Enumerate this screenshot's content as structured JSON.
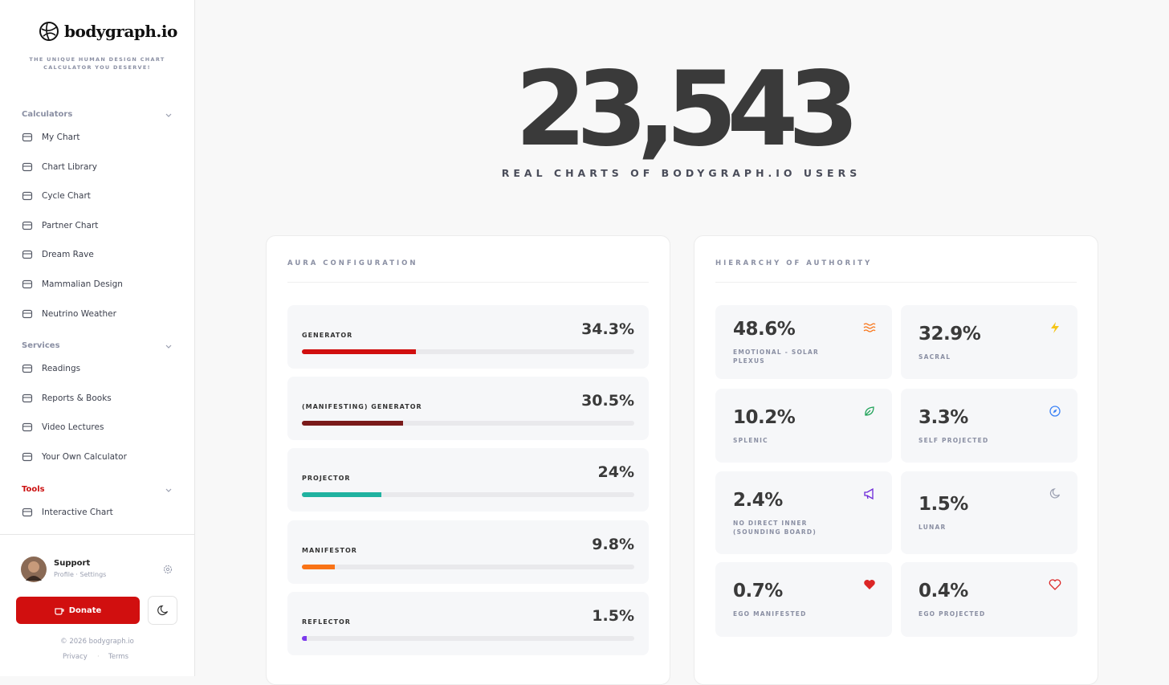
{
  "sidebar": {
    "brand": "bodygraph.io",
    "tagline": "THE UNIQUE HUMAN DESIGN CHART CALCULATOR YOU DESERVE!",
    "sections": [
      {
        "title": "Calculators",
        "items": [
          "My Chart",
          "Chart Library",
          "Cycle Chart",
          "Partner Chart",
          "Dream Rave",
          "Mammalian Design",
          "Neutrino Weather"
        ]
      },
      {
        "title": "Services",
        "items": [
          "Readings",
          "Reports & Books",
          "Video Lectures",
          "Your Own Calculator"
        ]
      },
      {
        "title": "Tools",
        "items": [
          "Interactive Chart"
        ]
      }
    ],
    "user": {
      "name": "Support",
      "links": "Profile · Settings"
    },
    "donate": "Donate",
    "copyright": "© 2026 bodygraph.io",
    "footer_links": [
      "Privacy",
      "Terms"
    ]
  },
  "hero": {
    "count": "23,543",
    "caption": "REAL CHARTS OF BODYGRAPH.IO USERS"
  },
  "aura": {
    "title": "AURA CONFIGURATION",
    "rows": [
      {
        "label": "GENERATOR",
        "value": 34.3,
        "value_label": "34.3%",
        "color": "#d10f0f"
      },
      {
        "label": "(MANIFESTING) GENERATOR",
        "value": 30.5,
        "value_label": "30.5%",
        "color": "#7a1a1a"
      },
      {
        "label": "PROJECTOR",
        "value": 24,
        "value_label": "24%",
        "color": "#20b2a0"
      },
      {
        "label": "MANIFESTOR",
        "value": 9.8,
        "value_label": "9.8%",
        "color": "#f97316"
      },
      {
        "label": "REFLECTOR",
        "value": 1.5,
        "value_label": "1.5%",
        "color": "#7c3aed"
      }
    ]
  },
  "authority": {
    "title": "HIERARCHY OF AUTHORITY",
    "items": [
      {
        "label": "EMOTIONAL - SOLAR PLEXUS",
        "value": "48.6%"
      },
      {
        "label": "SACRAL",
        "value": "32.9%"
      },
      {
        "label": "SPLENIC",
        "value": "10.2%"
      },
      {
        "label": "SELF PROJECTED",
        "value": "3.3%"
      },
      {
        "label": "NO DIRECT INNER (SOUNDING BOARD)",
        "value": "2.4%"
      },
      {
        "label": "LUNAR",
        "value": "1.5%"
      },
      {
        "label": "EGO MANIFESTED",
        "value": "0.7%"
      },
      {
        "label": "EGO PROJECTED",
        "value": "0.4%"
      }
    ]
  }
}
